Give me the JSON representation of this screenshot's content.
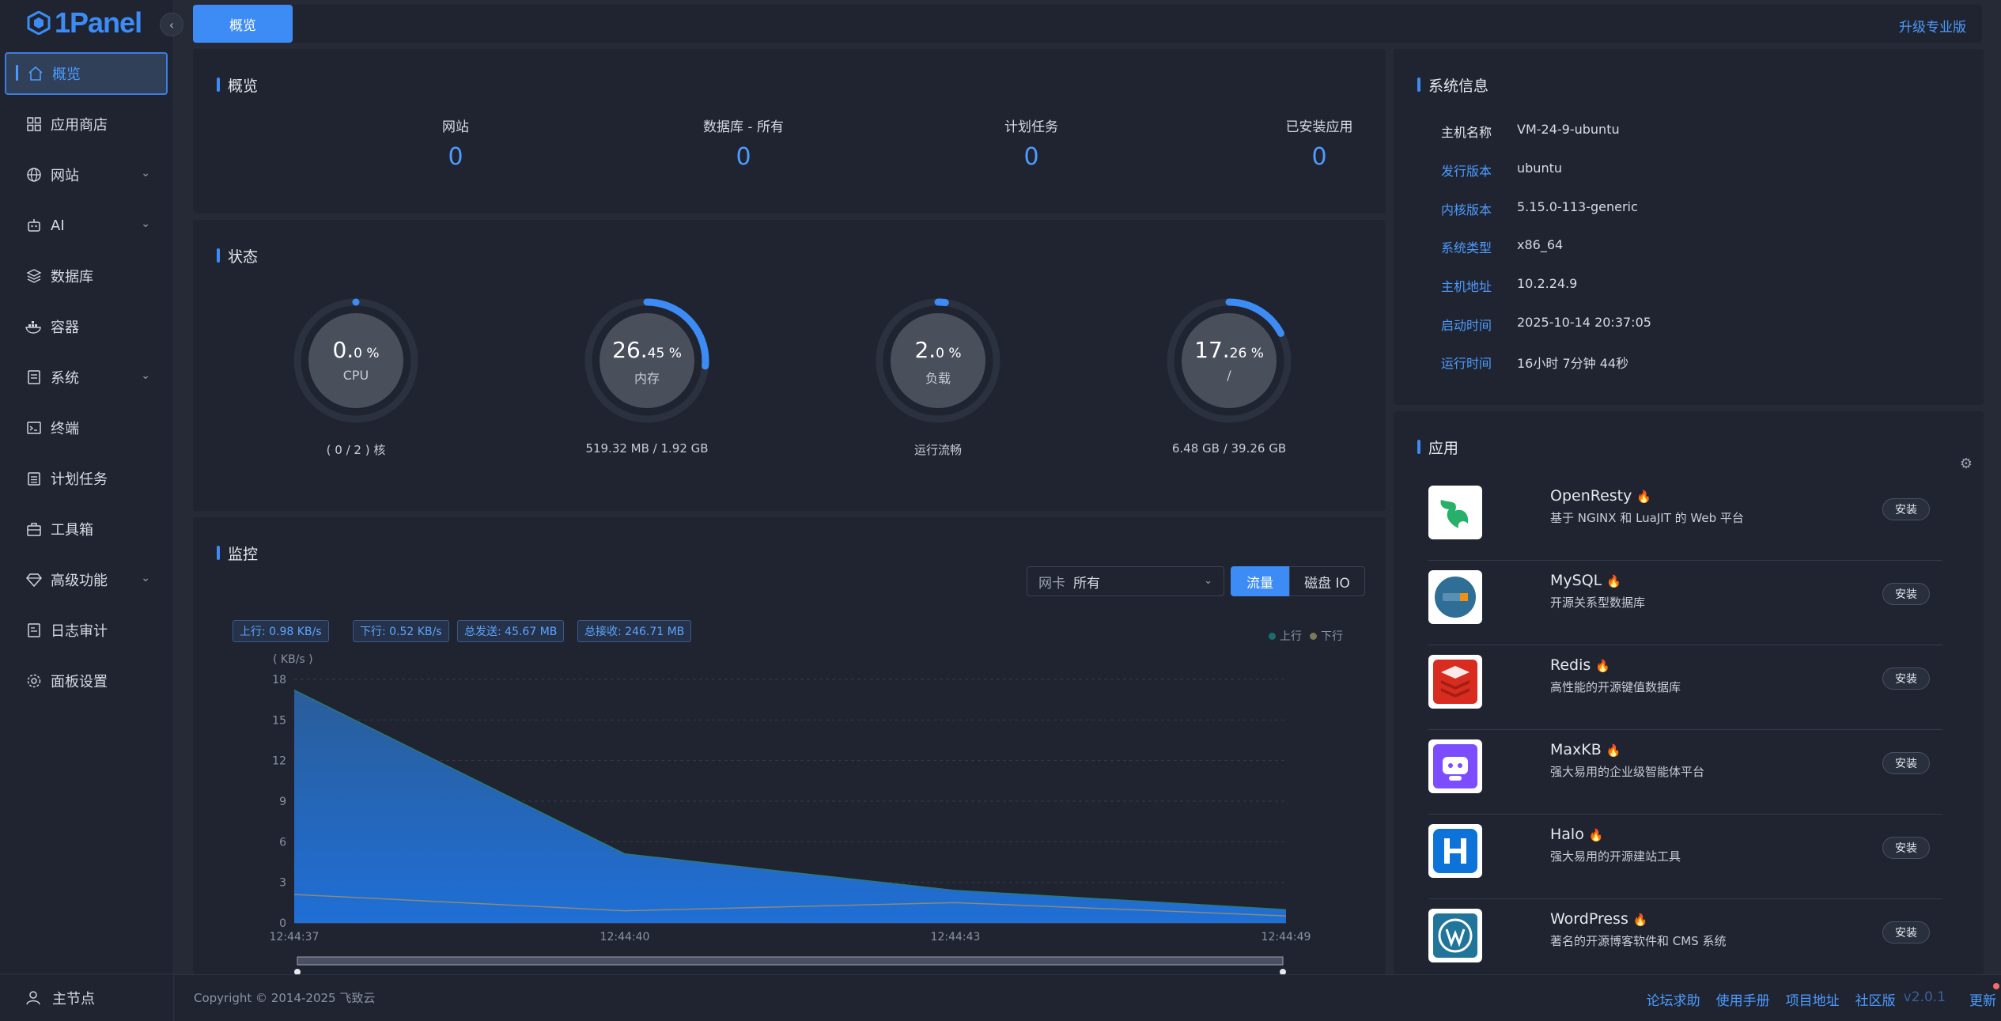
{
  "app": {
    "logo_text": "1Panel"
  },
  "sidebar": {
    "items": [
      {
        "label": "概览",
        "icon": "home-icon",
        "active": true
      },
      {
        "label": "应用商店",
        "icon": "grid-icon"
      },
      {
        "label": "网站",
        "icon": "globe-icon",
        "expand": true
      },
      {
        "label": "AI",
        "icon": "robot-icon",
        "expand": true
      },
      {
        "label": "数据库",
        "icon": "layers-icon"
      },
      {
        "label": "容器",
        "icon": "docker-icon"
      },
      {
        "label": "系统",
        "icon": "system-icon",
        "expand": true
      },
      {
        "label": "终端",
        "icon": "terminal-icon"
      },
      {
        "label": "计划任务",
        "icon": "calendar-icon"
      },
      {
        "label": "工具箱",
        "icon": "toolbox-icon"
      },
      {
        "label": "高级功能",
        "icon": "diamond-icon",
        "expand": true
      },
      {
        "label": "日志审计",
        "icon": "log-icon"
      },
      {
        "label": "面板设置",
        "icon": "gear-icon"
      }
    ],
    "footer_label": "主节点"
  },
  "topbar": {
    "tab_label": "概览",
    "upgrade_label": "升级专业版"
  },
  "overview": {
    "title": "概览",
    "items": [
      {
        "label": "网站",
        "value": "0"
      },
      {
        "label": "数据库 - 所有",
        "value": "0"
      },
      {
        "label": "计划任务",
        "value": "0"
      },
      {
        "label": "已安装应用",
        "value": "0"
      }
    ]
  },
  "status": {
    "title": "状态",
    "gauges": [
      {
        "big": "0.",
        "small": "0 %",
        "sub": "CPU",
        "foot": "( 0 / 2 ) 核",
        "percent": 0.0
      },
      {
        "big": "26.",
        "small": "45 %",
        "sub": "内存",
        "foot": "519.32 MB / 1.92 GB",
        "percent": 26.45
      },
      {
        "big": "2.",
        "small": "0 %",
        "sub": "负载",
        "foot": "运行流畅",
        "percent": 2.0
      },
      {
        "big": "17.",
        "small": "26 %",
        "sub": "/",
        "foot": "6.48 GB / 39.26 GB",
        "percent": 17.26
      }
    ]
  },
  "monitor": {
    "title": "监控",
    "nic_prefix": "网卡",
    "nic_value": "所有",
    "seg_traffic": "流量",
    "seg_disk": "磁盘 IO",
    "tags": [
      "上行: 0.98 KB/s",
      "下行: 0.52 KB/s",
      "总发送: 45.67 MB",
      "总接收: 246.71 MB"
    ],
    "legend_up": "上行",
    "legend_down": "下行",
    "accent": "#3d8cf5"
  },
  "chart_data": {
    "type": "area",
    "ylabel": "( KB/s )",
    "ylim": [
      0,
      18
    ],
    "yticks": [
      "0",
      "3",
      "6",
      "9",
      "12",
      "15",
      "18"
    ],
    "x": [
      "12:44:37",
      "12:44:40",
      "12:44:43",
      "12:44:49"
    ],
    "series": [
      {
        "name": "上行",
        "values": [
          17.2,
          5.1,
          2.4,
          0.98
        ]
      },
      {
        "name": "下行",
        "values": [
          2.1,
          0.9,
          1.5,
          0.52
        ]
      }
    ]
  },
  "sysinfo": {
    "title": "系统信息",
    "rows": [
      {
        "k": "主机名称",
        "v": "VM-24-9-ubuntu"
      },
      {
        "k": "发行版本",
        "v": "ubuntu"
      },
      {
        "k": "内核版本",
        "v": "5.15.0-113-generic"
      },
      {
        "k": "系统类型",
        "v": "x86_64"
      },
      {
        "k": "主机地址",
        "v": "10.2.24.9"
      },
      {
        "k": "启动时间",
        "v": "2025-10-14 20:37:05"
      },
      {
        "k": "运行时间",
        "v": "16小时 7分钟 44秒"
      }
    ]
  },
  "apps": {
    "title": "应用",
    "install_label": "安装",
    "items": [
      {
        "name": "OpenResty",
        "desc": "基于 NGINX 和 LuaJIT 的 Web 平台",
        "icon": "openresty-icon"
      },
      {
        "name": "MySQL",
        "desc": "开源关系型数据库",
        "icon": "mysql-icon"
      },
      {
        "name": "Redis",
        "desc": "高性能的开源键值数据库",
        "icon": "redis-icon"
      },
      {
        "name": "MaxKB",
        "desc": "强大易用的企业级智能体平台",
        "icon": "maxkb-icon"
      },
      {
        "name": "Halo",
        "desc": "强大易用的开源建站工具",
        "icon": "halo-icon"
      },
      {
        "name": "WordPress",
        "desc": "著名的开源博客软件和 CMS 系统",
        "icon": "wordpress-icon"
      }
    ]
  },
  "footer": {
    "copyright": "Copyright © 2014-2025 飞致云",
    "links": [
      "论坛求助",
      "使用手册",
      "项目地址",
      "社区版"
    ],
    "version": "v2.0.1",
    "update": "更新"
  }
}
